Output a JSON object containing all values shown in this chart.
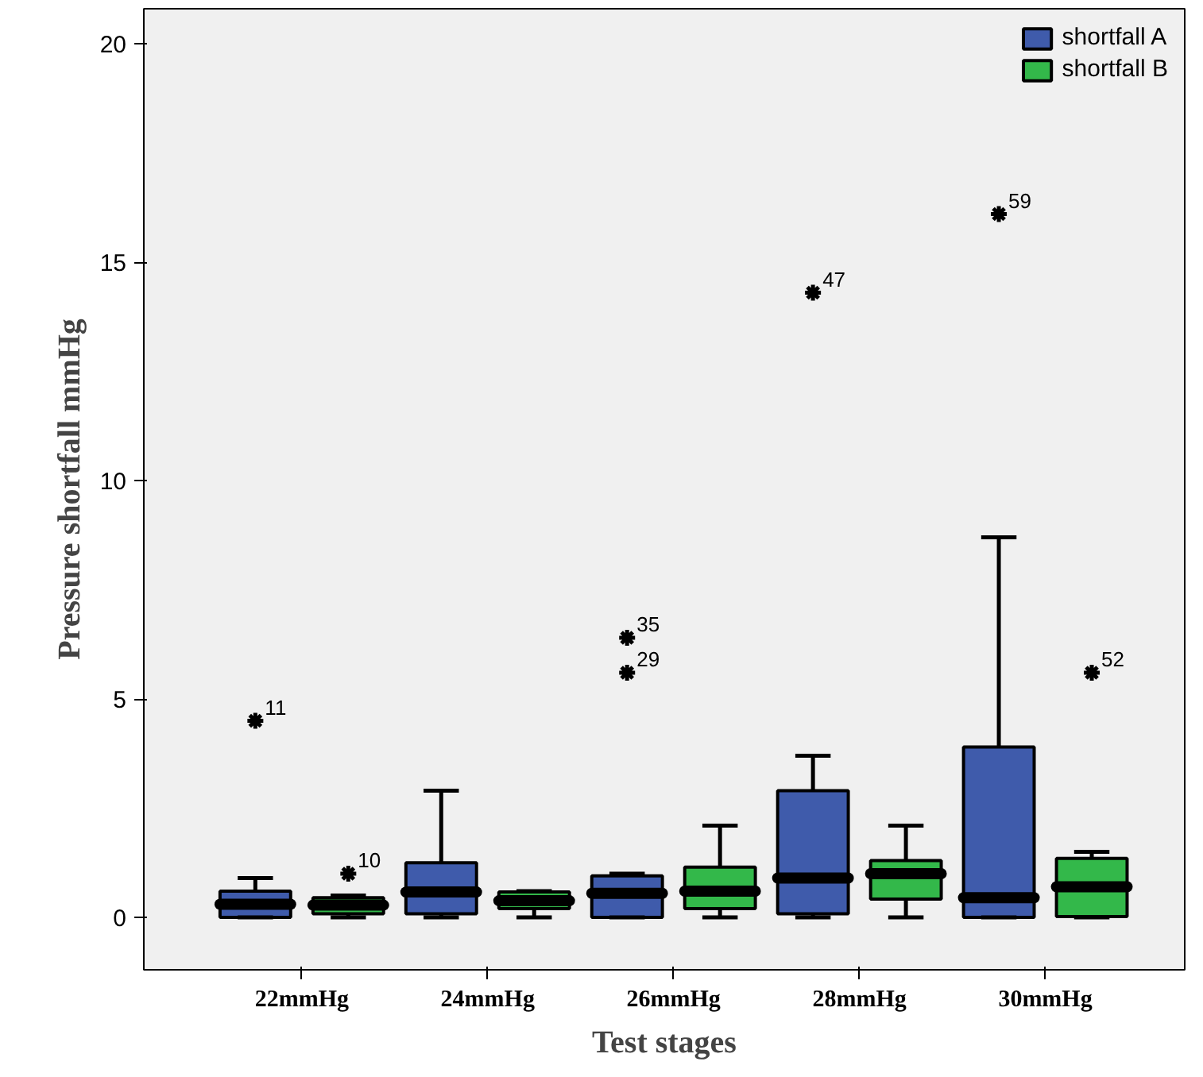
{
  "chart_data": {
    "type": "box",
    "xlabel": "Test stages",
    "ylabel": "Pressure shortfall mmHg",
    "categories": [
      "22mmHg",
      "24mmHg",
      "26mmHg",
      "28mmHg",
      "30mmHg"
    ],
    "ylim": [
      -1.2,
      20.8
    ],
    "yticks": [
      0,
      5,
      10,
      15,
      20
    ],
    "grid": false,
    "legend": "top right",
    "series": [
      {
        "name": "shortfall A",
        "color": "#3f5bab",
        "boxes": [
          {
            "low": 0,
            "q1": 0,
            "median": 0.3,
            "q3": 0.6,
            "high": 0.9,
            "outliers": [
              4.5
            ]
          },
          {
            "low": 0,
            "q1": 0.08,
            "median": 0.58,
            "q3": 1.25,
            "high": 2.9
          },
          {
            "low": 0,
            "q1": 0,
            "median": 0.55,
            "q3": 0.95,
            "high": 1.0,
            "outliers": [
              6.4,
              5.6
            ]
          },
          {
            "low": 0,
            "q1": 0.08,
            "median": 0.9,
            "q3": 2.9,
            "high": 3.7,
            "outliers": [
              14.3
            ]
          },
          {
            "low": 0,
            "q1": 0,
            "median": 0.45,
            "q3": 3.9,
            "high": 8.7,
            "outliers": [
              16.1
            ]
          }
        ]
      },
      {
        "name": "shortfall B",
        "color": "#33b84a",
        "boxes": [
          {
            "low": 0,
            "q1": 0.08,
            "median": 0.28,
            "q3": 0.45,
            "high": 0.5,
            "outliers": [
              1.0
            ]
          },
          {
            "low": 0,
            "q1": 0.2,
            "median": 0.38,
            "q3": 0.58,
            "high": 0.6
          },
          {
            "low": 0,
            "q1": 0.2,
            "median": 0.6,
            "q3": 1.15,
            "high": 2.1
          },
          {
            "low": 0,
            "q1": 0.42,
            "median": 1.0,
            "q3": 1.3,
            "high": 2.1
          },
          {
            "low": 0,
            "q1": 0.02,
            "median": 0.7,
            "q3": 1.35,
            "high": 1.5,
            "outliers": [
              5.6
            ]
          }
        ]
      }
    ],
    "annotations": [
      "11",
      "35",
      "29",
      "47",
      "59",
      "10",
      "52"
    ]
  }
}
